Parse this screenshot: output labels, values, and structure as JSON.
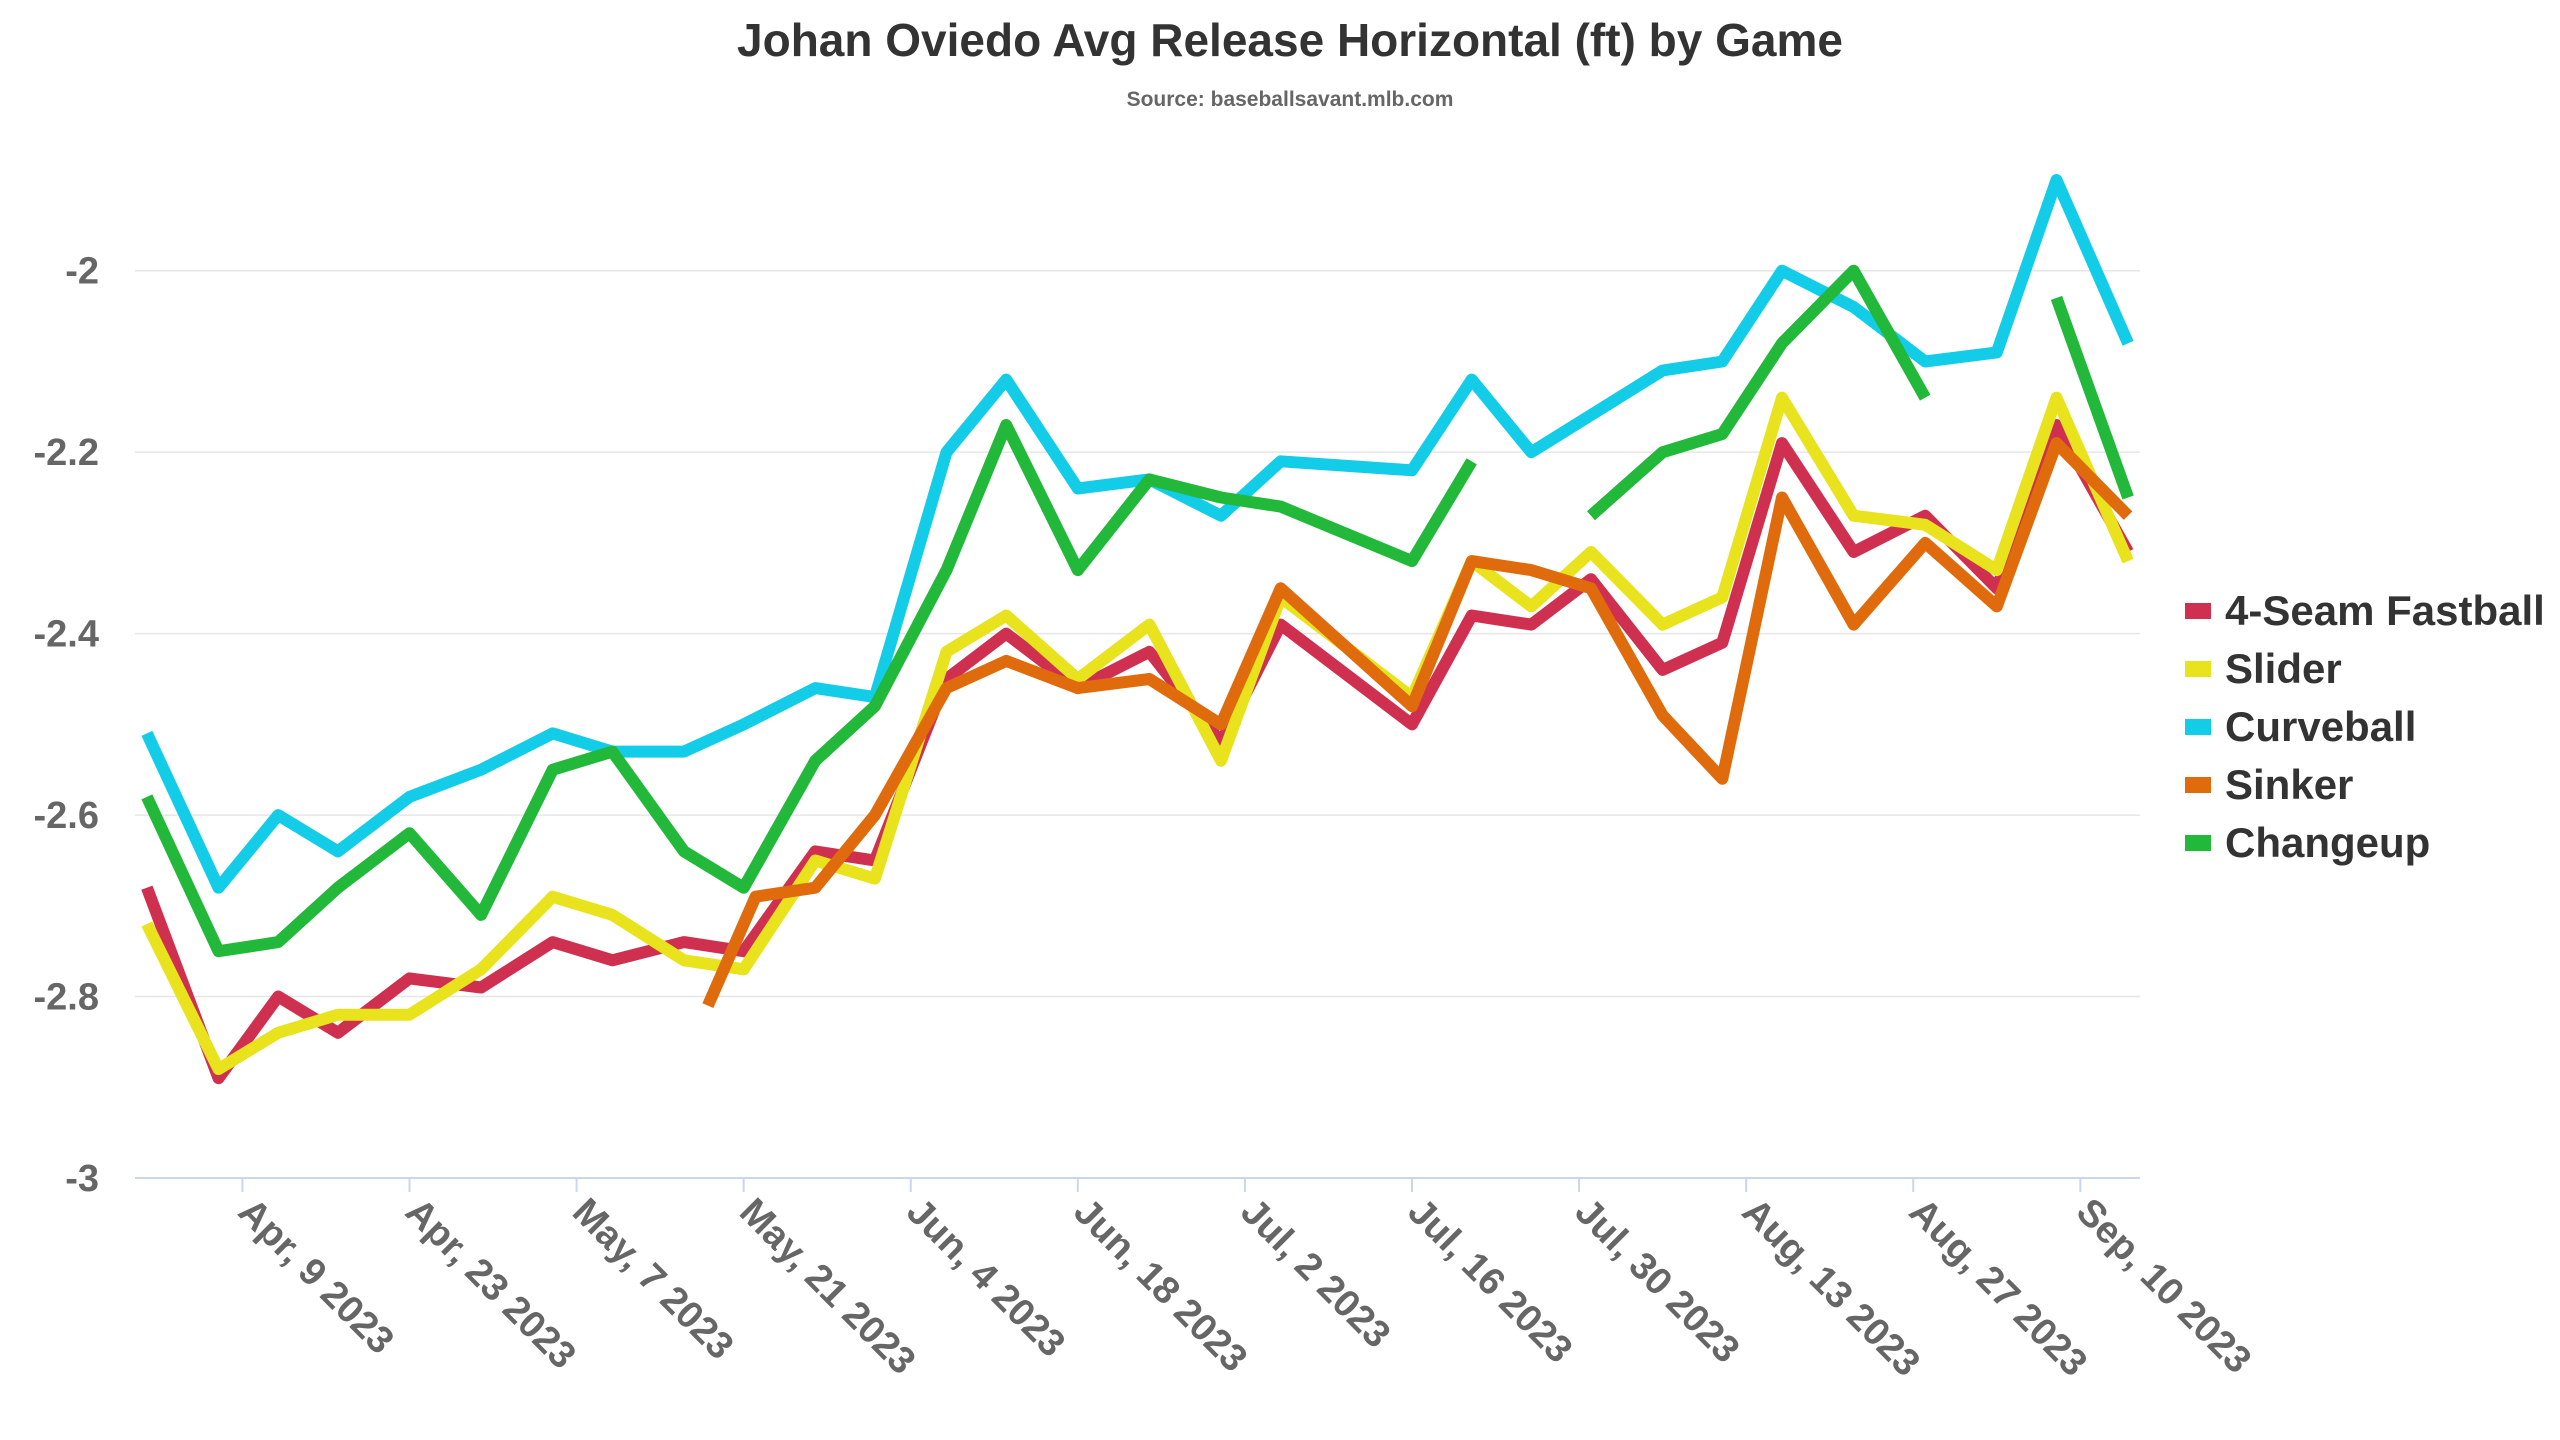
{
  "chart_data": {
    "type": "line",
    "title": "Johan Oviedo Avg Release Horizontal (ft) by Game",
    "subtitle": "Source: baseballsavant.mlb.com",
    "xlabel": "",
    "ylabel": "",
    "x_range": [
      "2023-03-31",
      "2023-09-15"
    ],
    "ylim": [
      -3,
      -1.9
    ],
    "yticks": [
      -2,
      -2.2,
      -2.4,
      -2.6,
      -2.8,
      -3
    ],
    "ytick_labels": [
      "-2",
      "-2.2",
      "-2.4",
      "-2.6",
      "-2.8",
      "-3"
    ],
    "xticks": [
      "2023-04-09",
      "2023-04-23",
      "2023-05-07",
      "2023-05-21",
      "2023-06-04",
      "2023-06-18",
      "2023-07-02",
      "2023-07-16",
      "2023-07-30",
      "2023-08-13",
      "2023-08-27",
      "2023-09-10"
    ],
    "xtick_labels": [
      "Apr, 9 2023",
      "Apr, 23 2023",
      "May, 7 2023",
      "May, 21 2023",
      "Jun, 4 2023",
      "Jun, 18 2023",
      "Jul, 2 2023",
      "Jul, 16 2023",
      "Jul, 30 2023",
      "Aug, 13 2023",
      "Aug, 27 2023",
      "Sep, 10 2023"
    ],
    "grid": true,
    "legend_position": "right",
    "series": [
      {
        "name": "4-Seam Fastball",
        "color": "#d0304f",
        "points": [
          [
            "2023-04-01",
            -2.68
          ],
          [
            "2023-04-07",
            -2.89
          ],
          [
            "2023-04-12",
            -2.8
          ],
          [
            "2023-04-17",
            -2.84
          ],
          [
            "2023-04-23",
            -2.78
          ],
          [
            "2023-04-29",
            -2.79
          ],
          [
            "2023-05-05",
            -2.74
          ],
          [
            "2023-05-10",
            -2.76
          ],
          [
            "2023-05-16",
            -2.74
          ],
          [
            "2023-05-21",
            -2.75
          ],
          [
            "2023-05-27",
            -2.64
          ],
          [
            "2023-06-01",
            -2.65
          ],
          [
            "2023-06-07",
            -2.45
          ],
          [
            "2023-06-12",
            -2.4
          ],
          [
            "2023-06-18",
            -2.46
          ],
          [
            "2023-06-24",
            -2.42
          ],
          [
            "2023-06-30",
            -2.52
          ],
          [
            "2023-07-05",
            -2.39
          ],
          [
            "2023-07-16",
            -2.5
          ],
          [
            "2023-07-21",
            -2.38
          ],
          [
            "2023-07-26",
            -2.39
          ],
          [
            "2023-07-31",
            -2.34
          ],
          [
            "2023-08-06",
            -2.44
          ],
          [
            "2023-08-11",
            -2.41
          ],
          [
            "2023-08-16",
            -2.19
          ],
          [
            "2023-08-22",
            -2.31
          ],
          [
            "2023-08-28",
            -2.27
          ],
          [
            "2023-09-03",
            -2.35
          ],
          [
            "2023-09-08",
            -2.17
          ],
          [
            "2023-09-14",
            -2.31
          ]
        ]
      },
      {
        "name": "Slider",
        "color": "#e8e31c",
        "points": [
          [
            "2023-04-01",
            -2.72
          ],
          [
            "2023-04-07",
            -2.88
          ],
          [
            "2023-04-12",
            -2.84
          ],
          [
            "2023-04-17",
            -2.82
          ],
          [
            "2023-04-23",
            -2.82
          ],
          [
            "2023-04-29",
            -2.77
          ],
          [
            "2023-05-05",
            -2.69
          ],
          [
            "2023-05-10",
            -2.71
          ],
          [
            "2023-05-16",
            -2.76
          ],
          [
            "2023-05-21",
            -2.77
          ],
          [
            "2023-05-27",
            -2.65
          ],
          [
            "2023-06-01",
            -2.67
          ],
          [
            "2023-06-07",
            -2.42
          ],
          [
            "2023-06-12",
            -2.38
          ],
          [
            "2023-06-18",
            -2.45
          ],
          [
            "2023-06-24",
            -2.39
          ],
          [
            "2023-06-30",
            -2.54
          ],
          [
            "2023-07-05",
            -2.36
          ],
          [
            "2023-07-16",
            -2.47
          ],
          [
            "2023-07-21",
            -2.32
          ],
          [
            "2023-07-26",
            -2.37
          ],
          [
            "2023-07-31",
            -2.31
          ],
          [
            "2023-08-06",
            -2.39
          ],
          [
            "2023-08-11",
            -2.36
          ],
          [
            "2023-08-16",
            -2.14
          ],
          [
            "2023-08-22",
            -2.27
          ],
          [
            "2023-08-28",
            -2.28
          ],
          [
            "2023-09-03",
            -2.33
          ],
          [
            "2023-09-08",
            -2.14
          ],
          [
            "2023-09-14",
            -2.32
          ]
        ]
      },
      {
        "name": "Curveball",
        "color": "#13cde8",
        "points": [
          [
            "2023-04-01",
            -2.51
          ],
          [
            "2023-04-07",
            -2.68
          ],
          [
            "2023-04-12",
            -2.6
          ],
          [
            "2023-04-17",
            -2.64
          ],
          [
            "2023-04-23",
            -2.58
          ],
          [
            "2023-04-29",
            -2.55
          ],
          [
            "2023-05-05",
            -2.51
          ],
          [
            "2023-05-10",
            -2.53
          ],
          [
            "2023-05-16",
            -2.53
          ],
          [
            "2023-05-21",
            -2.5
          ],
          [
            "2023-05-27",
            -2.46
          ],
          [
            "2023-06-01",
            -2.47
          ],
          [
            "2023-06-07",
            -2.2
          ],
          [
            "2023-06-12",
            -2.12
          ],
          [
            "2023-06-18",
            -2.24
          ],
          [
            "2023-06-24",
            -2.23
          ],
          [
            "2023-06-30",
            -2.27
          ],
          [
            "2023-07-05",
            -2.21
          ],
          [
            "2023-07-16",
            -2.22
          ],
          [
            "2023-07-21",
            -2.12
          ],
          [
            "2023-07-26",
            -2.2
          ],
          [
            "2023-08-06",
            -2.11
          ],
          [
            "2023-08-11",
            -2.1
          ],
          [
            "2023-08-16",
            -2.0
          ],
          [
            "2023-08-22",
            -2.04
          ],
          [
            "2023-08-28",
            -2.1
          ],
          [
            "2023-09-03",
            -2.09
          ],
          [
            "2023-09-08",
            -1.9
          ],
          [
            "2023-09-14",
            -2.08
          ]
        ]
      },
      {
        "name": "Sinker",
        "color": "#e06b0c",
        "points": [
          [
            "2023-05-18",
            -2.81
          ],
          [
            "2023-05-22",
            -2.69
          ],
          [
            "2023-05-27",
            -2.68
          ],
          [
            "2023-06-01",
            -2.6
          ],
          [
            "2023-06-07",
            -2.46
          ],
          [
            "2023-06-12",
            -2.43
          ],
          [
            "2023-06-18",
            -2.46
          ],
          [
            "2023-06-24",
            -2.45
          ],
          [
            "2023-06-30",
            -2.5
          ],
          [
            "2023-07-05",
            -2.35
          ],
          [
            "2023-07-16",
            -2.48
          ],
          [
            "2023-07-21",
            -2.32
          ],
          [
            "2023-07-26",
            -2.33
          ],
          [
            "2023-07-31",
            -2.35
          ],
          [
            "2023-08-06",
            -2.49
          ],
          [
            "2023-08-11",
            -2.56
          ],
          [
            "2023-08-16",
            -2.25
          ],
          [
            "2023-08-22",
            -2.39
          ],
          [
            "2023-08-28",
            -2.3
          ],
          [
            "2023-09-03",
            -2.37
          ],
          [
            "2023-09-08",
            -2.19
          ],
          [
            "2023-09-14",
            -2.27
          ]
        ]
      },
      {
        "name": "Changeup",
        "color": "#22b83a",
        "points": [
          [
            "2023-04-01",
            -2.58
          ],
          [
            "2023-04-07",
            -2.75
          ],
          [
            "2023-04-12",
            -2.74
          ],
          [
            "2023-04-17",
            -2.68
          ],
          [
            "2023-04-23",
            -2.62
          ],
          [
            "2023-04-29",
            -2.71
          ],
          [
            "2023-05-05",
            -2.55
          ],
          [
            "2023-05-10",
            -2.53
          ],
          [
            "2023-05-16",
            -2.64
          ],
          [
            "2023-05-21",
            -2.68
          ],
          [
            "2023-05-27",
            -2.54
          ],
          [
            "2023-06-01",
            -2.48
          ],
          [
            "2023-06-07",
            -2.33
          ],
          [
            "2023-06-12",
            -2.17
          ],
          [
            "2023-06-18",
            -2.33
          ],
          [
            "2023-06-24",
            -2.23
          ],
          [
            "2023-06-30",
            -2.25
          ],
          [
            "2023-07-05",
            -2.26
          ],
          [
            "2023-07-16",
            -2.32
          ],
          [
            "2023-07-21",
            -2.21
          ],
          null,
          [
            "2023-07-31",
            -2.27
          ],
          [
            "2023-08-06",
            -2.2
          ],
          [
            "2023-08-11",
            -2.18
          ],
          [
            "2023-08-16",
            -2.08
          ],
          [
            "2023-08-22",
            -2.0
          ],
          [
            "2023-08-28",
            -2.14
          ],
          null,
          [
            "2023-09-08",
            -2.03
          ],
          [
            "2023-09-14",
            -2.25
          ]
        ]
      }
    ]
  }
}
